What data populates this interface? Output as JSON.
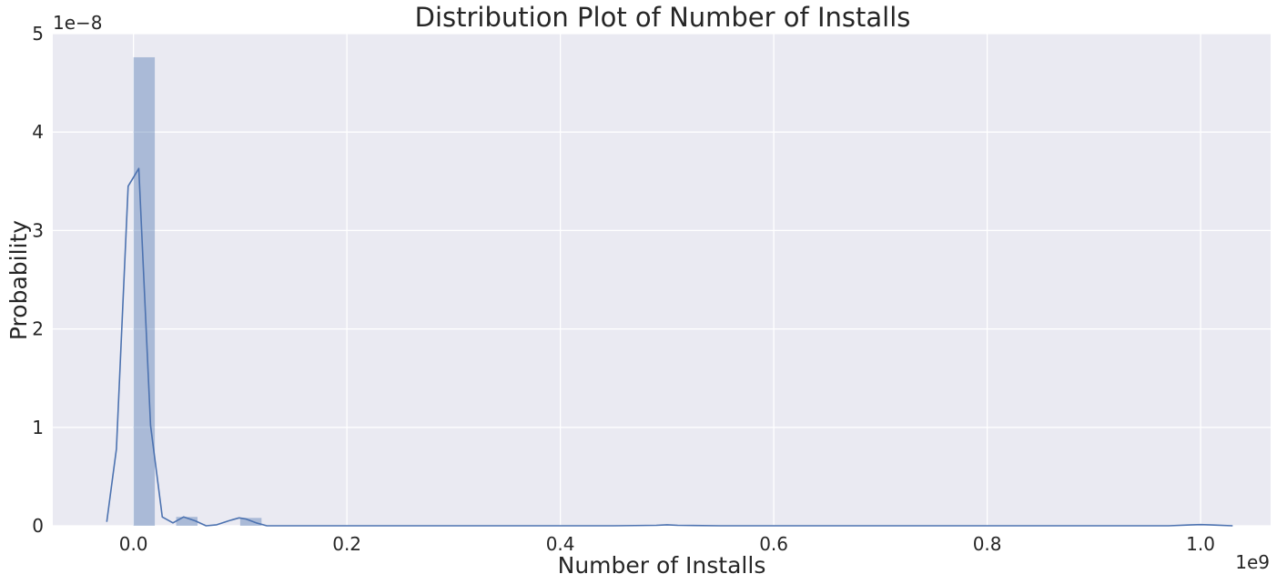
{
  "chart_data": {
    "type": "histogram",
    "title": "Distribution Plot of Number of Installs",
    "xlabel": "Number of Installs",
    "ylabel": "Probability",
    "x_offset_label": "1e9",
    "y_offset_label": "1e−8",
    "x_scale": 1000000000,
    "y_scale": 1e-08,
    "xlim": [
      -0.0756,
      1.0656
    ],
    "ylim": [
      0,
      5
    ],
    "xticks": [
      {
        "value": 0.0,
        "label": "0.0"
      },
      {
        "value": 0.2,
        "label": "0.2"
      },
      {
        "value": 0.4,
        "label": "0.4"
      },
      {
        "value": 0.6,
        "label": "0.6"
      },
      {
        "value": 0.8,
        "label": "0.8"
      },
      {
        "value": 1.0,
        "label": "1.0"
      }
    ],
    "yticks": [
      {
        "value": 0,
        "label": "0"
      },
      {
        "value": 1,
        "label": "1"
      },
      {
        "value": 2,
        "label": "2"
      },
      {
        "value": 3,
        "label": "3"
      },
      {
        "value": 4,
        "label": "4"
      },
      {
        "value": 5,
        "label": "5"
      }
    ],
    "grid": true,
    "background": "#eaeaf2",
    "grid_color": "#ffffff",
    "bar_color": "#4c72b0",
    "bar_alpha": 0.4,
    "line_color": "#4c72b0",
    "bars": [
      {
        "x0": 0.0,
        "x1": 0.02,
        "height": 4.76
      },
      {
        "x0": 0.04,
        "x1": 0.06,
        "height": 0.09
      },
      {
        "x0": 0.1,
        "x1": 0.12,
        "height": 0.08
      }
    ],
    "kde": {
      "x": [
        -0.025,
        -0.016,
        -0.005,
        0.005,
        0.016,
        0.027,
        0.037,
        0.047,
        0.058,
        0.068,
        0.078,
        0.089,
        0.099,
        0.105,
        0.115,
        0.125,
        0.14,
        0.2,
        0.3,
        0.45,
        0.49,
        0.5,
        0.51,
        0.55,
        0.7,
        0.9,
        0.97,
        0.99,
        1.0,
        1.01,
        1.03
      ],
      "y": [
        0.04,
        0.78,
        3.45,
        3.63,
        1.02,
        0.09,
        0.03,
        0.09,
        0.05,
        0.0,
        0.01,
        0.05,
        0.08,
        0.07,
        0.03,
        0.0,
        0.0,
        0.0,
        0.0,
        0.0,
        0.005,
        0.01,
        0.005,
        0.0,
        0.0,
        0.0,
        0.0,
        0.008,
        0.012,
        0.008,
        0.0
      ]
    }
  }
}
